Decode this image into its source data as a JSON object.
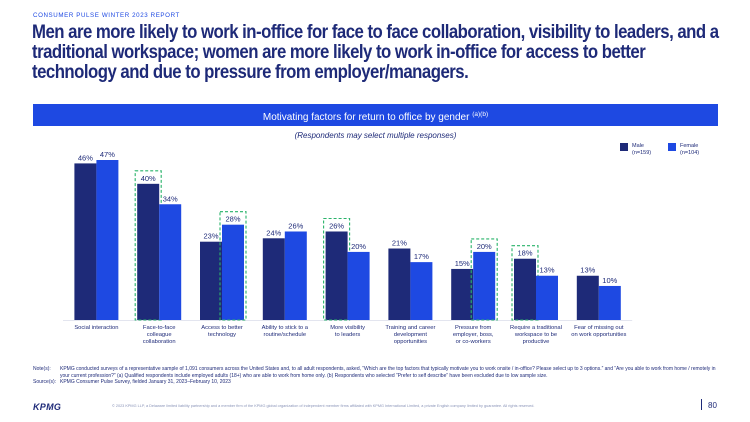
{
  "report_label": "CONSUMER PULSE WINTER 2023 REPORT",
  "headline": {
    "line1": "Men are more likely to work in-office for face to face collaboration, visibility to leaders, and a",
    "line2": "traditional workspace; women are more likely to work in-office for access to better",
    "line3": "technology and due to pressure from employer/managers."
  },
  "chart_data": {
    "type": "bar",
    "title": "Motivating factors for return to office by gender",
    "title_superscript": "(a)(b)",
    "subtitle": "(Respondents may select multiple responses)",
    "categories": [
      [
        "Social interaction"
      ],
      [
        "Face-to-face",
        "colleague",
        "collaboration"
      ],
      [
        "Access to better",
        "technology"
      ],
      [
        "Ability to stick to a",
        "routine/schedule"
      ],
      [
        "More visibility",
        "to leaders"
      ],
      [
        "Training and career",
        "development",
        "opportunities"
      ],
      [
        "Pressure from",
        "employer, boss,",
        "or co-workers"
      ],
      [
        "Require a traditional",
        "workspace to be",
        "productive"
      ],
      [
        "Fear of missing out",
        "on work opportunities"
      ]
    ],
    "series": [
      {
        "name": "Male",
        "sample": "(n=159)",
        "color": "#1e2a78",
        "values": [
          46,
          40,
          23,
          24,
          26,
          21,
          15,
          18,
          13
        ]
      },
      {
        "name": "Female",
        "sample": "(n=104)",
        "color": "#1e49e2",
        "values": [
          47,
          34,
          28,
          26,
          20,
          17,
          20,
          13,
          10
        ]
      }
    ],
    "value_suffix": "%",
    "highlighted": [
      {
        "category_index": 1,
        "series_index": 0
      },
      {
        "category_index": 2,
        "series_index": 1
      },
      {
        "category_index": 4,
        "series_index": 0
      },
      {
        "category_index": 6,
        "series_index": 1
      },
      {
        "category_index": 7,
        "series_index": 0
      }
    ],
    "highlight_color": "#29b36a",
    "ylim": [
      0,
      47
    ],
    "grid": false,
    "legend_position": "top-right"
  },
  "notes": {
    "label": "Note(s):",
    "text": "KPMG conducted surveys of a representative sample of 1,091 consumers across the United States and, to all adult respondents, asked, “Which are the top factors that typically motivate you to work onsite / in-office? Please select up to 3 options.” and “Are you able to work from home / remotely in your current profession?” (a) Qualified respondents include employed adults (18+) who are able to work from home only. (b) Respondents who selected “Prefer to self describe” have been excluded due to low sample size.",
    "source_label": "Source(s):",
    "source_text": "KPMG Consumer Pulse Survey, fielded January 31, 2023–February 10, 2023"
  },
  "footer": {
    "logo": "KPMG",
    "copyright": "© 2023 KPMG LLP, a Delaware limited liability partnership and a member firm of the KPMG global organization of independent member firms affiliated with KPMG International Limited, a private English company limited by guarantee. All rights reserved.",
    "page_number": "80"
  }
}
